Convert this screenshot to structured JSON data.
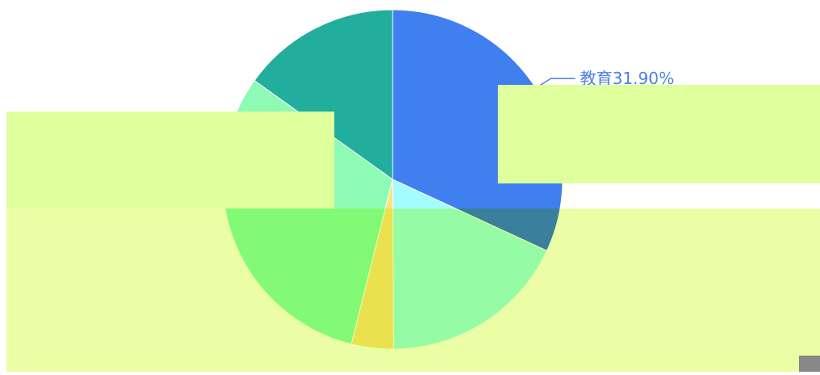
{
  "chart_data": {
    "type": "pie",
    "title": "",
    "slices": [
      {
        "label": "教育",
        "value": 31.9,
        "display": "教育31.90%",
        "color": "#3f7ff0",
        "label_color": "#4a7fe8"
      },
      {
        "label": "",
        "value": 18.0,
        "display": "",
        "color": "#a3fcff",
        "label_color": "#a3fcff"
      },
      {
        "label": "",
        "value": 4.0,
        "display": "",
        "color": "#ffe27a",
        "label_color": "#ffe27a"
      },
      {
        "label": "",
        "value": 31.0,
        "display": "",
        "color": "#8dfbb4",
        "label_color": "#8dfbb4"
      },
      {
        "label": "",
        "value": 15.1,
        "display": "",
        "color": "#22ae9c",
        "label_color": "#22ae9c"
      }
    ]
  },
  "overlay_colors": {
    "band_light_green": "#dffe9c",
    "band_yellow_green": "#ebfea5",
    "corner_box": "#888888"
  }
}
